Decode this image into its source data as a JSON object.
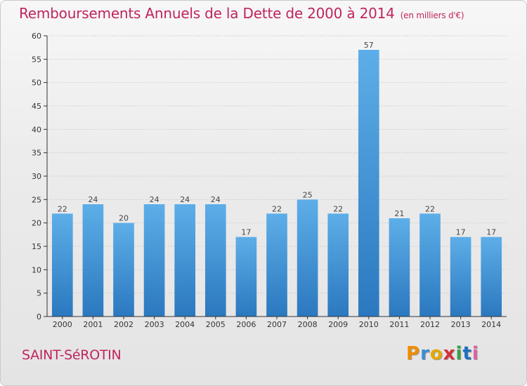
{
  "header": {
    "title": "Remboursements Annuels de la Dette de 2000 à 2014",
    "subtitle": "(en milliers d'€)"
  },
  "footer": {
    "commune": "SAINT-SéROTIN",
    "logo": [
      "P",
      "r",
      "o",
      "x",
      "i",
      "t",
      "i"
    ],
    "logo_colors": [
      "#f08c00",
      "#3a8fd6",
      "#e4a800",
      "#d62f3a",
      "#3aa04a",
      "#1e6fc4",
      "#e05fa0"
    ]
  },
  "colors": {
    "bar_top": "#5daee8",
    "bar_bottom": "#2b78bf",
    "grid": "#cfcfcf",
    "axis": "#333333"
  },
  "chart_data": {
    "type": "bar",
    "categories": [
      "2000",
      "2001",
      "2002",
      "2003",
      "2004",
      "2005",
      "2006",
      "2007",
      "2008",
      "2009",
      "2010",
      "2011",
      "2012",
      "2013",
      "2014"
    ],
    "values": [
      22,
      24,
      20,
      24,
      24,
      24,
      17,
      22,
      25,
      22,
      57,
      21,
      22,
      17,
      17
    ],
    "ylim": [
      0,
      60
    ],
    "yticks": [
      0,
      5,
      10,
      15,
      20,
      25,
      30,
      35,
      40,
      45,
      50,
      55,
      60
    ],
    "grid": true,
    "data_labels": true
  }
}
